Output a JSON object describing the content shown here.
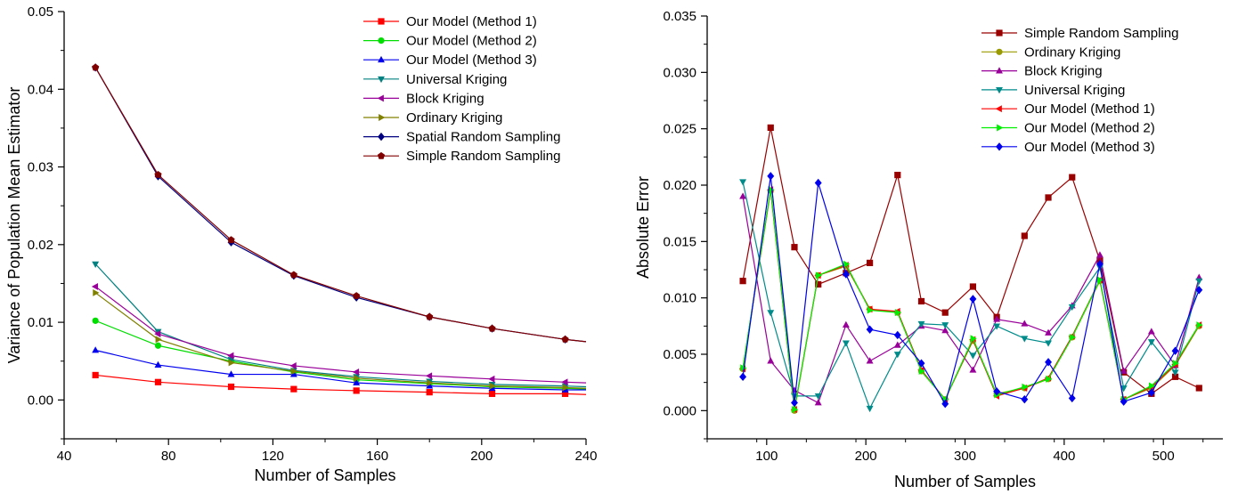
{
  "chart_data": [
    {
      "type": "line",
      "title": "",
      "xlabel": "Number of Samples",
      "ylabel": "Variance of Population Mean Estimator",
      "xlim": [
        40,
        240
      ],
      "ylim": [
        -0.005,
        0.05
      ],
      "xticks": [
        40,
        80,
        120,
        160,
        200,
        240
      ],
      "yticks": [
        0.0,
        0.01,
        0.02,
        0.03,
        0.04,
        0.05
      ],
      "ytick_labels": [
        "0.00",
        "0.01",
        "0.02",
        "0.03",
        "0.04",
        "0.05"
      ],
      "grid": false,
      "legend_position": "top-right",
      "x": [
        52,
        76,
        104,
        128,
        152,
        180,
        204,
        232,
        240
      ],
      "series": [
        {
          "name": "Our Model (Method 1)",
          "color": "#ff0000",
          "marker": "square",
          "values": [
            0.0032,
            0.0023,
            0.0017,
            0.0014,
            0.0012,
            0.001,
            0.0008,
            0.0008,
            0.0007
          ]
        },
        {
          "name": "Our Model (Method 2)",
          "color": "#00dd00",
          "marker": "circle",
          "values": [
            0.0102,
            0.007,
            0.005,
            0.0036,
            0.0026,
            0.0021,
            0.0017,
            0.0015,
            0.0014
          ]
        },
        {
          "name": "Our Model (Method 3)",
          "color": "#0000ee",
          "marker": "triangle-up",
          "values": [
            0.0064,
            0.0045,
            0.0033,
            0.0033,
            0.0022,
            0.0018,
            0.0015,
            0.0013,
            0.0013
          ]
        },
        {
          "name": "Universal Kriging",
          "color": "#008080",
          "marker": "triangle-down",
          "values": [
            0.0175,
            0.0088,
            0.0052,
            0.0038,
            0.003,
            0.0024,
            0.002,
            0.0018,
            0.0017
          ]
        },
        {
          "name": "Block Kriging",
          "color": "#990099",
          "marker": "triangle-left",
          "values": [
            0.0146,
            0.0085,
            0.0057,
            0.0044,
            0.0036,
            0.0031,
            0.0027,
            0.0023,
            0.0022
          ]
        },
        {
          "name": "Ordinary Kriging",
          "color": "#808000",
          "marker": "triangle-right",
          "values": [
            0.0138,
            0.0078,
            0.0048,
            0.0037,
            0.0028,
            0.0022,
            0.0018,
            0.0016,
            0.0015
          ]
        },
        {
          "name": "Spatial Random Sampling",
          "color": "#000080",
          "marker": "diamond",
          "values": [
            0.0428,
            0.0288,
            0.0203,
            0.016,
            0.0132,
            0.0107,
            0.0092,
            0.0078,
            0.0075
          ]
        },
        {
          "name": "Simple Random Sampling",
          "color": "#800000",
          "marker": "pentagon",
          "values": [
            0.0428,
            0.029,
            0.0206,
            0.0161,
            0.0134,
            0.0107,
            0.0092,
            0.0078,
            0.0075
          ]
        }
      ]
    },
    {
      "type": "line",
      "title": "",
      "xlabel": "Number of Samples",
      "ylabel": "Absolute Error",
      "xlim": [
        40,
        560
      ],
      "ylim": [
        -0.0025,
        0.035
      ],
      "xticks": [
        100,
        200,
        300,
        400,
        500
      ],
      "yticks": [
        0.0,
        0.005,
        0.01,
        0.015,
        0.02,
        0.025,
        0.03,
        0.035
      ],
      "ytick_labels": [
        "0.000",
        "0.005",
        "0.010",
        "0.015",
        "0.020",
        "0.025",
        "0.030",
        "0.035"
      ],
      "grid": false,
      "legend_position": "top-right",
      "x": [
        76,
        104,
        128,
        152,
        180,
        204,
        232,
        256,
        280,
        308,
        332,
        360,
        384,
        408,
        436,
        460,
        488,
        512,
        536
      ],
      "series": [
        {
          "name": "Simple Random Sampling",
          "color": "#990000",
          "marker": "square",
          "values": [
            0.0115,
            0.0251,
            0.0145,
            0.0112,
            0.0122,
            0.0131,
            0.0209,
            0.0097,
            0.0087,
            0.011,
            0.0083,
            0.0155,
            0.0189,
            0.0207,
            0.0133,
            0.0034,
            0.0015,
            0.003,
            0.002
          ]
        },
        {
          "name": "Ordinary Kriging",
          "color": "#999900",
          "marker": "circle",
          "values": [
            0.0037,
            0.0195,
            0.0,
            0.012,
            0.0128,
            0.009,
            0.0087,
            0.0035,
            0.001,
            0.0062,
            0.0015,
            0.002,
            0.0028,
            0.0065,
            0.0115,
            0.001,
            0.002,
            0.004,
            0.0075
          ]
        },
        {
          "name": "Block Kriging",
          "color": "#990099",
          "marker": "triangle-up",
          "values": [
            0.019,
            0.0044,
            0.0018,
            0.0007,
            0.0076,
            0.0044,
            0.0058,
            0.0075,
            0.0071,
            0.0036,
            0.0081,
            0.0077,
            0.0069,
            0.0093,
            0.0138,
            0.0035,
            0.007,
            0.004,
            0.0118
          ]
        },
        {
          "name": "Universal Kriging",
          "color": "#008b8b",
          "marker": "triangle-down",
          "values": [
            0.0203,
            0.0087,
            0.0013,
            0.0013,
            0.006,
            0.0002,
            0.005,
            0.0077,
            0.0076,
            0.0049,
            0.0075,
            0.0064,
            0.006,
            0.0092,
            0.0127,
            0.002,
            0.0061,
            0.0034,
            0.0115
          ]
        },
        {
          "name": "Our Model (Method 1)",
          "color": "#ff0000",
          "marker": "triangle-left",
          "values": [
            0.0037,
            0.0196,
            0.0001,
            0.012,
            0.0129,
            0.009,
            0.0088,
            0.0036,
            0.001,
            0.0063,
            0.0013,
            0.002,
            0.0029,
            0.0066,
            0.0116,
            0.001,
            0.0021,
            0.0041,
            0.0076
          ]
        },
        {
          "name": "Our Model (Method 2)",
          "color": "#00ee00",
          "marker": "triangle-right",
          "values": [
            0.0038,
            0.0196,
            0.0001,
            0.012,
            0.013,
            0.0089,
            0.0087,
            0.0035,
            0.001,
            0.0064,
            0.0014,
            0.0021,
            0.0028,
            0.0065,
            0.0116,
            0.001,
            0.0022,
            0.0042,
            0.0076
          ]
        },
        {
          "name": "Our Model (Method 3)",
          "color": "#0000ee",
          "marker": "diamond",
          "values": [
            0.003,
            0.0208,
            0.0007,
            0.0202,
            0.0121,
            0.0072,
            0.0067,
            0.0042,
            0.0006,
            0.0099,
            0.0017,
            0.001,
            0.0043,
            0.0011,
            0.013,
            0.0008,
            0.0016,
            0.0053,
            0.0107
          ]
        }
      ]
    }
  ]
}
